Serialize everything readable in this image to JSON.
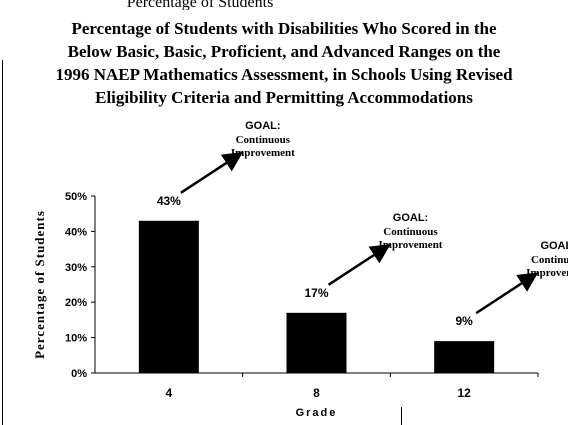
{
  "partial_heading": "Percentage of Students",
  "chart_data": {
    "type": "bar",
    "title_lines": [
      "Percentage of Students with Disabilities Who Scored in the",
      "Below Basic, Basic, Proficient, and Advanced Ranges on the",
      "1996 NAEP Mathematics Assessment, in Schools Using Revised",
      "Eligibility Criteria and Permitting Accommodations"
    ],
    "xlabel": "Grade",
    "ylabel": "Percentage of Students",
    "categories": [
      "4",
      "8",
      "12"
    ],
    "values": [
      43,
      17,
      9
    ],
    "data_labels": [
      "43%",
      "17%",
      "9%"
    ],
    "ylim": [
      0,
      50
    ],
    "yticks": [
      0,
      10,
      20,
      30,
      40,
      50
    ],
    "ytick_labels": [
      "0%",
      "10%",
      "20%",
      "30%",
      "40%",
      "50%"
    ],
    "grid": false,
    "bar_color": "#000000",
    "annotations": [
      {
        "category": "4",
        "line1": "GOAL:",
        "line2": "Continuous",
        "line3": "Improvement"
      },
      {
        "category": "8",
        "line1": "GOAL:",
        "line2": "Continuous",
        "line3": "Improvement"
      },
      {
        "category": "12",
        "line1": "GOAL:",
        "line2": "Continuous",
        "line3": "Improvement"
      }
    ]
  }
}
